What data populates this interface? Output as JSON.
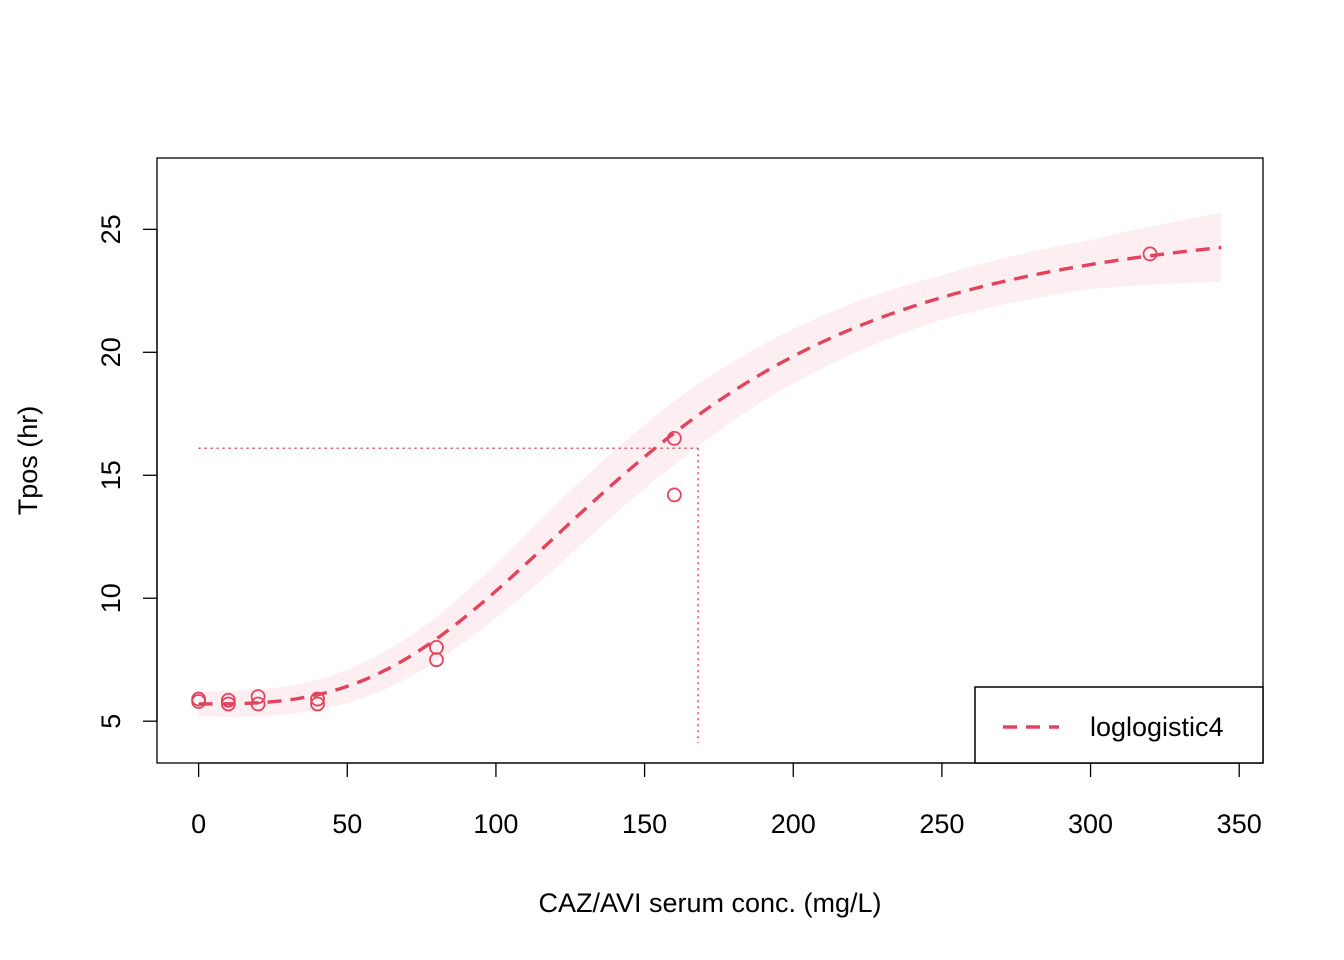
{
  "chart_data": {
    "type": "scatter",
    "title": "",
    "xlabel": "CAZ/AVI serum conc. (mg/L)",
    "ylabel": "Tpos (hr)",
    "xlim": [
      -14,
      358
    ],
    "ylim": [
      3.3,
      27.9
    ],
    "x_ticks": [
      0,
      50,
      100,
      150,
      200,
      250,
      300,
      350
    ],
    "y_ticks": [
      5,
      10,
      15,
      20,
      25
    ],
    "grid": false,
    "legend": {
      "position": "bottom-right",
      "entries": [
        {
          "label": "loglogistic4",
          "style": "dashed",
          "color": "#e2445e"
        }
      ]
    },
    "colors": {
      "series": "#e2445e",
      "band": "#fdeef1",
      "axis": "#000000"
    },
    "points": [
      {
        "x": 0,
        "y": 5.9
      },
      {
        "x": 0,
        "y": 5.8
      },
      {
        "x": 10,
        "y": 5.85
      },
      {
        "x": 10,
        "y": 5.7
      },
      {
        "x": 20,
        "y": 6.0
      },
      {
        "x": 20,
        "y": 5.7
      },
      {
        "x": 40,
        "y": 5.9
      },
      {
        "x": 40,
        "y": 5.7
      },
      {
        "x": 80,
        "y": 8.0
      },
      {
        "x": 80,
        "y": 7.5
      },
      {
        "x": 160,
        "y": 16.5
      },
      {
        "x": 160,
        "y": 14.2
      },
      {
        "x": 320,
        "y": 24.0
      }
    ],
    "fit": {
      "name": "loglogistic4",
      "model": "four-parameter log-logistic",
      "params": {
        "b": -3.0,
        "c": 5.7,
        "d": 25.8,
        "e": 150
      },
      "x_range": [
        0,
        344
      ],
      "ci_half_width": [
        {
          "x": 0,
          "hw": 0.5
        },
        {
          "x": 40,
          "hw": 0.6
        },
        {
          "x": 80,
          "hw": 0.9
        },
        {
          "x": 120,
          "hw": 1.3
        },
        {
          "x": 160,
          "hw": 1.3
        },
        {
          "x": 200,
          "hw": 1.1
        },
        {
          "x": 250,
          "hw": 0.9
        },
        {
          "x": 300,
          "hw": 1.0
        },
        {
          "x": 344,
          "hw": 1.4
        }
      ]
    },
    "reference_point": {
      "x": 168,
      "y": 16.1
    }
  }
}
